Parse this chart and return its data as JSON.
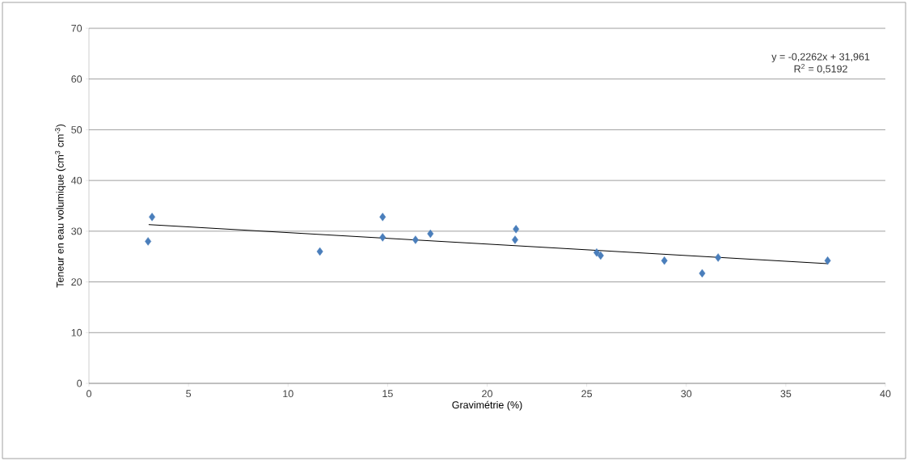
{
  "chart_data": {
    "type": "scatter",
    "xlabel": "Gravimétrie (%)",
    "ylabel": "Teneur en eau volumique (cm$^{3}$ cm$^{-3}$)",
    "annotations": [
      "y = -0,2262x + 31,961",
      "R$^{2}$ = 0,5192"
    ],
    "xlim": [
      0,
      40
    ],
    "ylim": [
      0,
      70
    ],
    "xticks": [
      0,
      5,
      10,
      15,
      20,
      25,
      30,
      35,
      40
    ],
    "yticks": [
      0,
      10,
      20,
      30,
      40,
      50,
      60,
      70
    ],
    "grid": "y",
    "marker": "diamond",
    "series": [
      {
        "color": "#4a7ebb",
        "x": [
          2.97,
          3.17,
          11.6,
          14.75,
          14.75,
          16.4,
          17.15,
          21.4,
          21.45,
          25.5,
          25.7,
          28.9,
          30.8,
          31.6,
          37.1
        ],
        "values": [
          28.0,
          32.8,
          26.0,
          32.8,
          28.8,
          28.3,
          29.5,
          28.3,
          30.4,
          25.8,
          25.2,
          24.2,
          21.7,
          24.8,
          24.2
        ]
      },
      {
        "type": "line",
        "color": "#000000",
        "marker": "none",
        "x": [
          3.0,
          37.1
        ],
        "values": [
          31.3,
          23.6
        ]
      }
    ]
  }
}
